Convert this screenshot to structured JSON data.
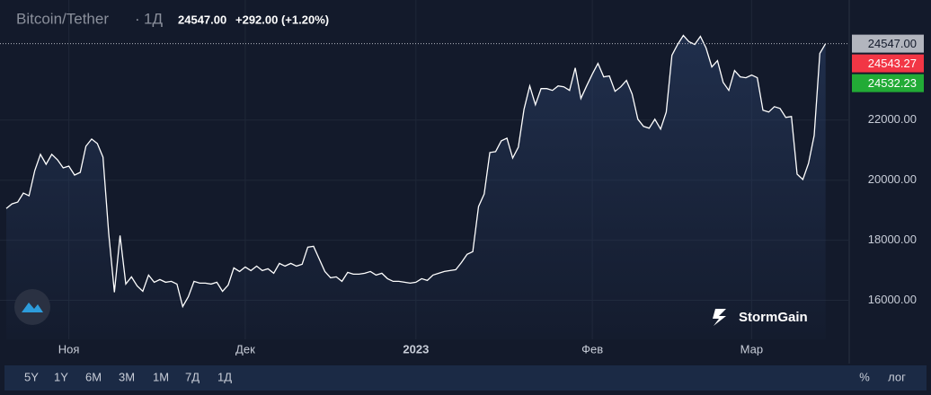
{
  "chart_data": {
    "type": "line",
    "title": "Bitcoin/Tether",
    "interval": "1Д",
    "header_price": "24547.00",
    "header_change": "+292.00 (+1.20%)",
    "color": "#ffffff",
    "grid": true,
    "values": [
      19060,
      19210,
      19270,
      19570,
      19480,
      20320,
      20860,
      20530,
      20860,
      20680,
      20410,
      20470,
      20170,
      20260,
      21130,
      21370,
      21220,
      20770,
      18220,
      16270,
      18160,
      16540,
      16780,
      16480,
      16300,
      16840,
      16600,
      16690,
      16600,
      16630,
      16540,
      15790,
      16120,
      16630,
      16570,
      16570,
      16540,
      16600,
      16300,
      16510,
      17080,
      16960,
      17110,
      16990,
      17140,
      16990,
      17050,
      16900,
      17230,
      17140,
      17230,
      17140,
      17200,
      17770,
      17800,
      17380,
      16960,
      16750,
      16780,
      16630,
      16930,
      16870,
      16870,
      16900,
      16960,
      16840,
      16900,
      16720,
      16630,
      16630,
      16600,
      16570,
      16600,
      16720,
      16660,
      16840,
      16900,
      16960,
      16990,
      17020,
      17260,
      17530,
      17620,
      19120,
      19540,
      20920,
      20950,
      21310,
      21400,
      20740,
      21100,
      22360,
      23140,
      22510,
      23050,
      23050,
      22990,
      23140,
      23110,
      22990,
      23740,
      22720,
      23140,
      23530,
      23890,
      23440,
      23470,
      22960,
      23110,
      23320,
      22870,
      22030,
      21790,
      21730,
      22030,
      21700,
      22270,
      24160,
      24520,
      24820,
      24610,
      24520,
      24790,
      24400,
      23770,
      23980,
      23260,
      22990,
      23650,
      23440,
      23410,
      23500,
      23410,
      22330,
      22270,
      22450,
      22390,
      22090,
      22120,
      20200,
      20020,
      20560,
      21490,
      24220,
      24547
    ],
    "xlim": [
      0,
      148
    ],
    "xticks": [
      {
        "value": 11,
        "label": "Ноя"
      },
      {
        "value": 42,
        "label": "Дек"
      },
      {
        "value": 72,
        "label": "2023"
      },
      {
        "value": 103,
        "label": "Фев"
      },
      {
        "value": 131,
        "label": "Мар"
      }
    ],
    "ylim": [
      14700,
      26000
    ],
    "yticks": [
      {
        "value": 16000,
        "label": "16000.00"
      },
      {
        "value": 18000,
        "label": "18000.00"
      },
      {
        "value": 20000,
        "label": "20000.00"
      },
      {
        "value": 22000,
        "label": "22000.00"
      }
    ],
    "price_tags": [
      {
        "value": 24547,
        "label": "24547.00",
        "color": "#b2b5be"
      },
      {
        "value": 24543.27,
        "label": "24543.27",
        "color": "#f23645"
      },
      {
        "value": 24532.23,
        "label": "24532.23",
        "color": "#22ab36"
      }
    ]
  },
  "watermark": "StormGain",
  "toolbar": {
    "ranges": [
      "5Y",
      "1Y",
      "6M",
      "3M",
      "1M",
      "7Д",
      "1Д"
    ],
    "options": [
      "%",
      "лог"
    ]
  }
}
